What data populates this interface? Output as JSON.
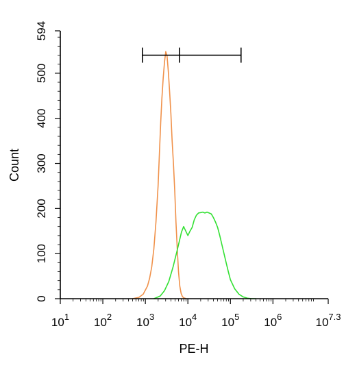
{
  "chart_data": {
    "type": "line",
    "title": "",
    "xlabel": "PE-H",
    "ylabel": "Count",
    "x_scale": "log10",
    "xlim": [
      10,
      19952623
    ],
    "ylim": [
      0,
      594
    ],
    "x_ticks": [
      {
        "base": "10",
        "exp": "1",
        "value": 10
      },
      {
        "base": "10",
        "exp": "2",
        "value": 100
      },
      {
        "base": "10",
        "exp": "3",
        "value": 1000
      },
      {
        "base": "10",
        "exp": "4",
        "value": 10000
      },
      {
        "base": "10",
        "exp": "5",
        "value": 100000
      },
      {
        "base": "10",
        "exp": "6",
        "value": 1000000
      },
      {
        "base": "10",
        "exp": "7.3",
        "value": 19952623
      }
    ],
    "y_ticks": [
      {
        "label": "0",
        "value": 0
      },
      {
        "label": "100",
        "value": 100
      },
      {
        "label": "200",
        "value": 200
      },
      {
        "label": "300",
        "value": 300
      },
      {
        "label": "400",
        "value": 400
      },
      {
        "label": "500",
        "value": 500
      },
      {
        "label": "594",
        "value": 594
      }
    ],
    "grid": false,
    "legend": "none",
    "gate_marker": {
      "x_values": [
        851,
        6310,
        177828
      ],
      "y": 540
    },
    "series": [
      {
        "color": "#f0914a",
        "x": [
          501,
          708,
          891,
          1122,
          1259,
          1413,
          1585,
          1778,
          1995,
          2138,
          2291,
          2455,
          2630,
          2818,
          3020,
          3236,
          3467,
          3715,
          3981,
          4266,
          4571,
          4898,
          5248,
          5623,
          6026,
          6457,
          6918,
          7413,
          7943,
          8511,
          9120
        ],
        "y": [
          0,
          3,
          10,
          28,
          45,
          70,
          110,
          170,
          250,
          320,
          390,
          445,
          490,
          525,
          548,
          538,
          505,
          460,
          410,
          350,
          300,
          240,
          170,
          110,
          60,
          28,
          12,
          5,
          2,
          1,
          0
        ]
      },
      {
        "color": "#33e033",
        "x": [
          1585,
          2238,
          2818,
          3548,
          4467,
          5623,
          6310,
          7079,
          7943,
          8913,
          10000,
          11220,
          12589,
          14125,
          15849,
          17783,
          19953,
          22387,
          25119,
          28184,
          31623,
          35481,
          39811,
          44668,
          50119,
          56234,
          63096,
          70795,
          79433,
          89125,
          100000,
          125893,
          158489,
          199526,
          251189,
          316228,
          398107
        ],
        "y": [
          0,
          6,
          18,
          38,
          70,
          108,
          128,
          148,
          160,
          150,
          140,
          150,
          158,
          175,
          185,
          190,
          191,
          192,
          190,
          192,
          190,
          188,
          180,
          170,
          158,
          140,
          120,
          100,
          80,
          60,
          42,
          22,
          10,
          4,
          1,
          0,
          0
        ]
      }
    ]
  }
}
